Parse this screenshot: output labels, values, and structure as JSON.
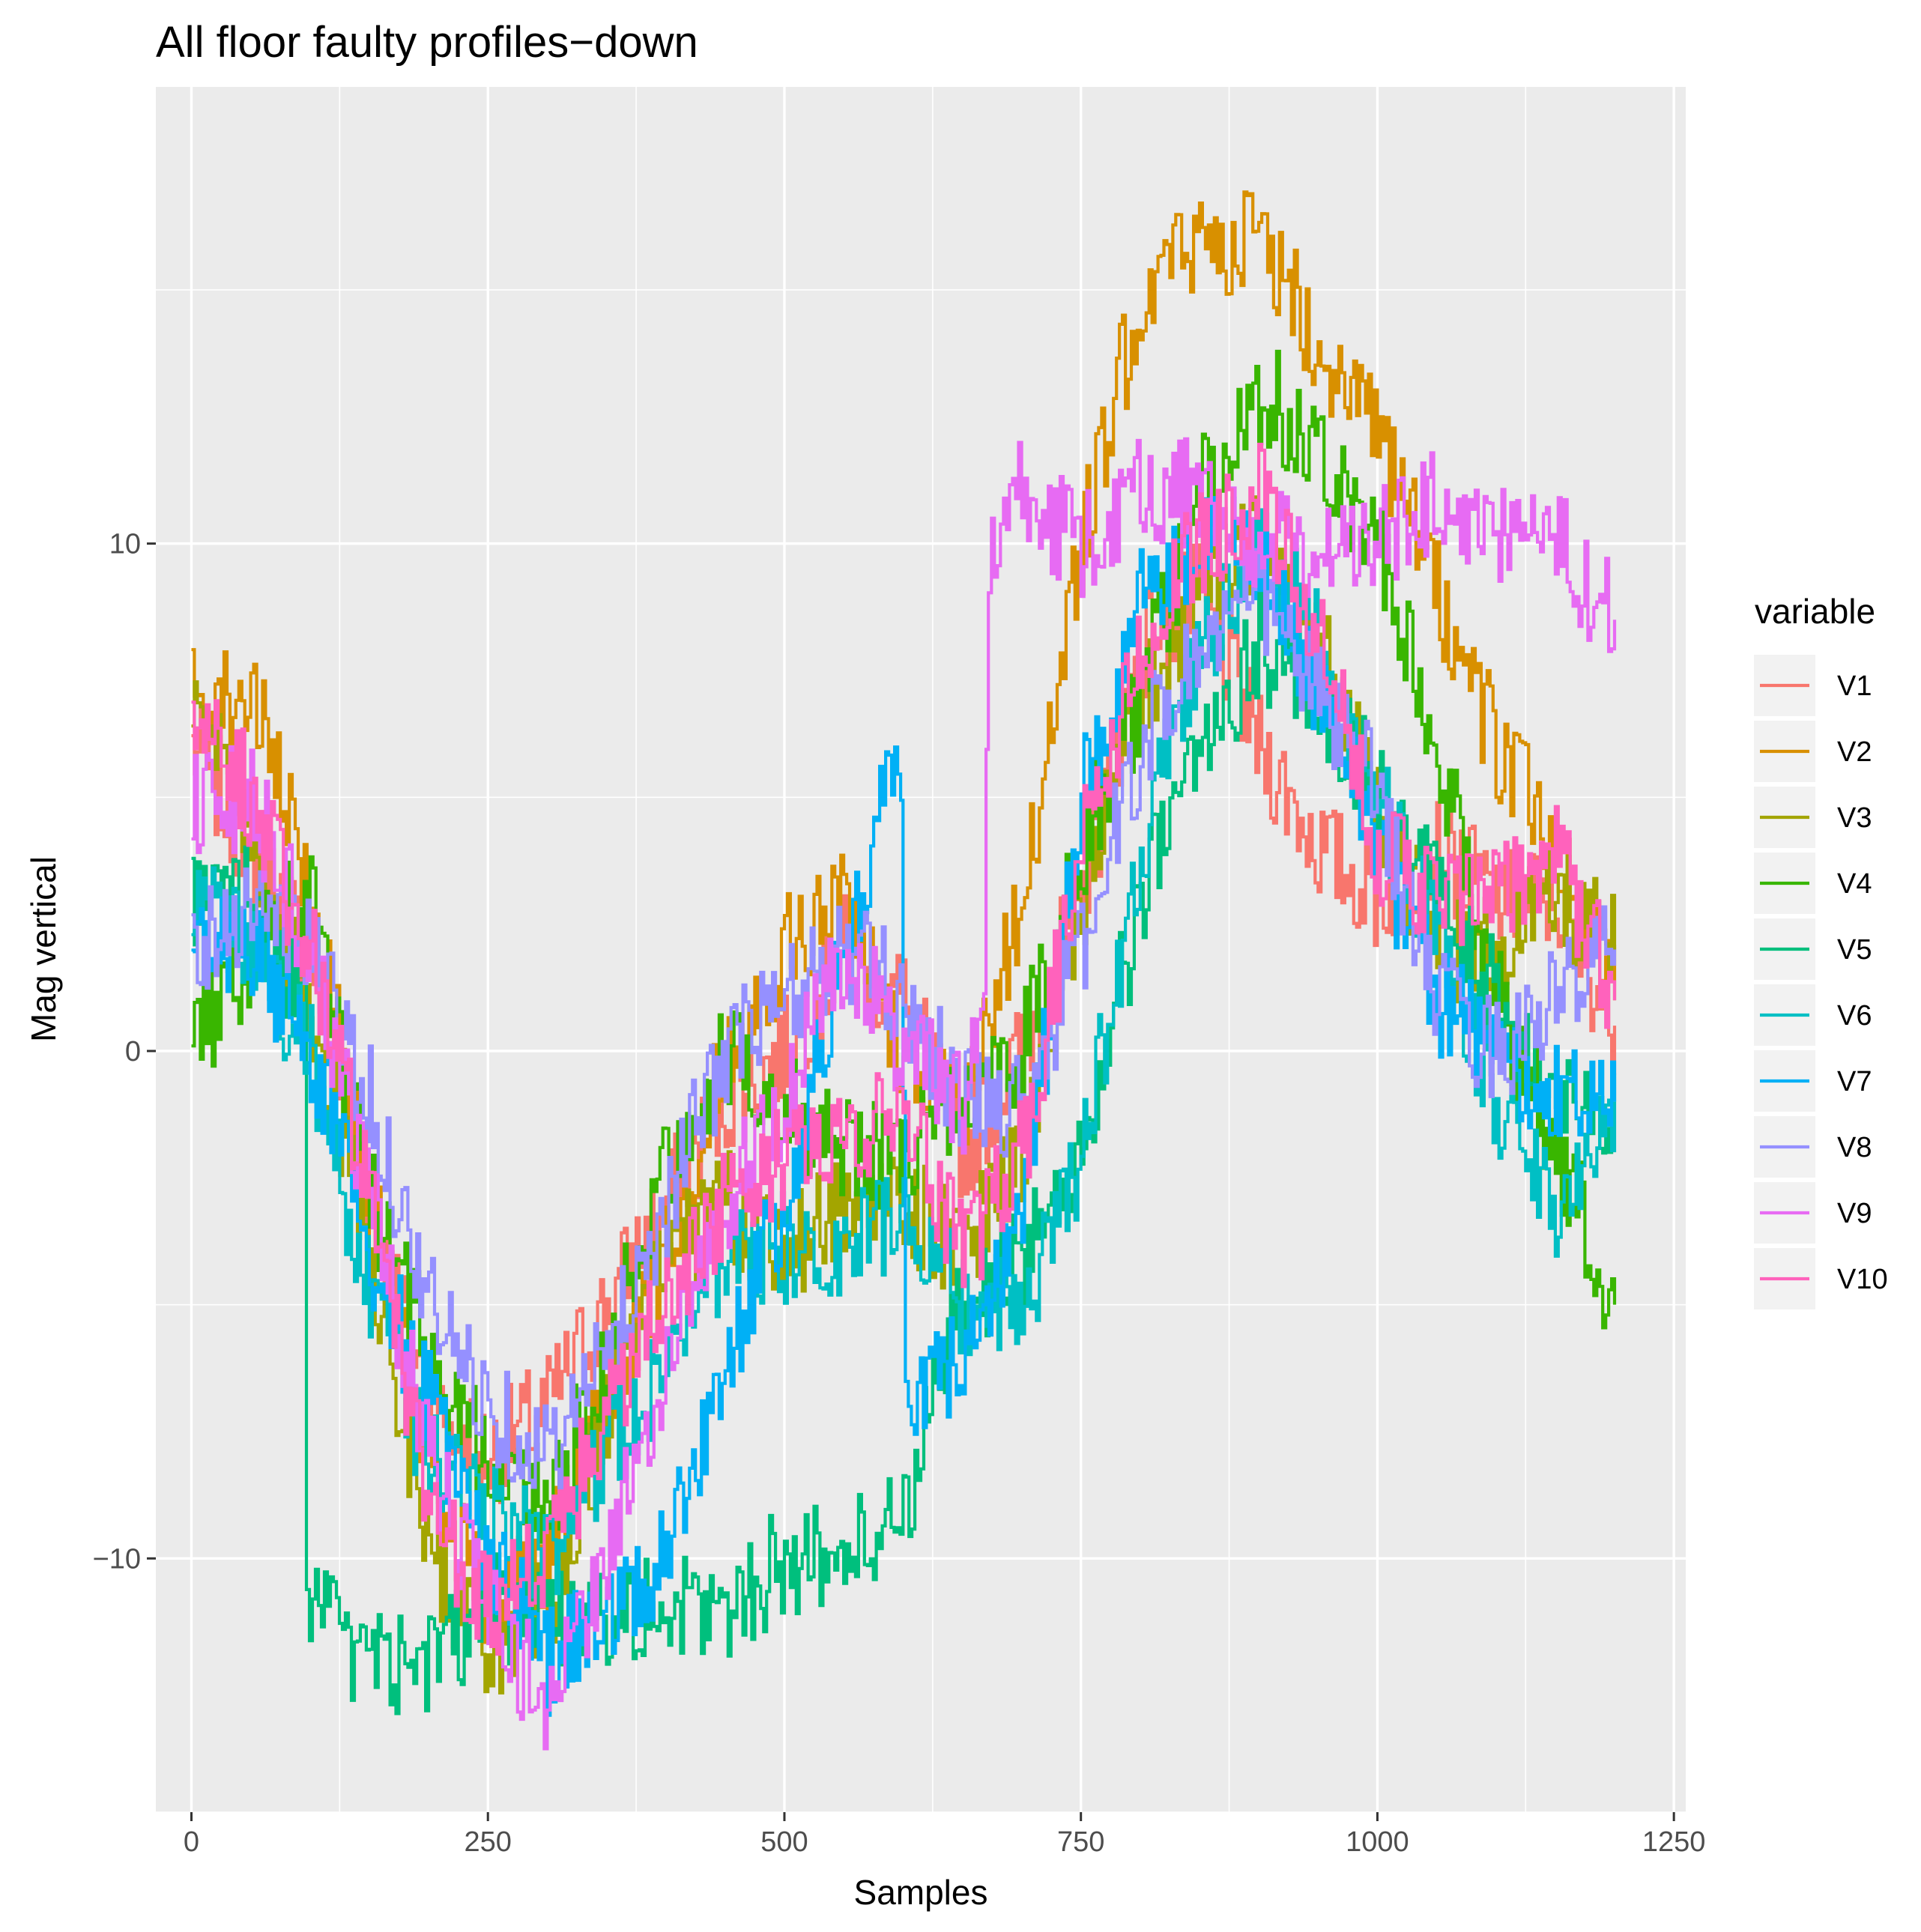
{
  "chart_data": {
    "type": "line",
    "title": "All floor faulty profiles−down",
    "xlabel": "Samples",
    "ylabel": "Mag vertical",
    "xlim": [
      -30,
      1260
    ],
    "ylim": [
      -15,
      19
    ],
    "x_ticks": [
      0,
      250,
      500,
      750,
      1000,
      1250
    ],
    "x_tick_labels": [
      "0",
      "250",
      "500",
      "750",
      "1000",
      "1250"
    ],
    "y_ticks": [
      -10,
      0,
      10
    ],
    "y_tick_labels": [
      "−10",
      "0",
      "10"
    ],
    "grid": true,
    "legend": {
      "title": "variable",
      "position": "right"
    },
    "series": [
      {
        "name": "V1",
        "color": "#F8766D",
        "x": [
          0,
          50,
          100,
          150,
          200,
          250,
          300,
          350,
          400,
          450,
          500,
          550,
          600,
          650,
          700,
          750,
          800,
          850,
          900,
          950,
          1000,
          1050,
          1100,
          1150,
          1200
        ],
        "y": [
          6,
          4,
          2,
          -3,
          -7,
          -8,
          -7,
          -5,
          -3,
          -1,
          0,
          2,
          1,
          -2,
          0,
          3,
          8,
          9,
          6,
          4,
          3,
          4,
          3,
          3,
          0.5
        ]
      },
      {
        "name": "V2",
        "color": "#D89000",
        "x": [
          0,
          50,
          100,
          150,
          200,
          250,
          300,
          350,
          400,
          450,
          500,
          550,
          600,
          650,
          700,
          750,
          800,
          850,
          900,
          950,
          1000,
          1050,
          1100,
          1150,
          1200
        ],
        "y": [
          7,
          7,
          3,
          -3,
          -8,
          -11,
          -10,
          -7,
          -4,
          0,
          2,
          3,
          0,
          -1,
          3,
          10,
          15,
          16,
          16,
          14,
          12,
          9,
          6,
          4,
          1
        ]
      },
      {
        "name": "V3",
        "color": "#A3A500",
        "x": [
          0,
          50,
          100,
          150,
          200,
          250,
          300,
          350,
          400,
          450,
          500,
          550,
          600,
          650,
          700,
          750,
          800,
          850,
          900,
          950,
          1000,
          1050,
          1100,
          1150,
          1200
        ],
        "y": [
          7,
          4,
          1,
          -4,
          -10,
          -12,
          -11,
          -7,
          -4,
          -3,
          -4,
          -3,
          -3,
          -4,
          -2,
          3,
          7,
          9,
          10,
          8,
          5,
          2,
          2,
          3,
          2
        ]
      },
      {
        "name": "V4",
        "color": "#39B600",
        "x": [
          0,
          50,
          100,
          150,
          200,
          250,
          300,
          350,
          400,
          450,
          500,
          550,
          600,
          650,
          700,
          750,
          800,
          850,
          900,
          950,
          1000,
          1050,
          1100,
          1150,
          1200
        ],
        "y": [
          0,
          2,
          3,
          -3,
          -6,
          -8,
          -9,
          -6,
          -2,
          0,
          -1,
          -2,
          -2,
          -1,
          0,
          4,
          7,
          11,
          13,
          12,
          10,
          6,
          1,
          -2,
          -5
        ]
      },
      {
        "name": "V5",
        "color": "#00BF7D",
        "x": [
          0,
          50,
          95,
          97,
          150,
          200,
          250,
          300,
          350,
          400,
          450,
          500,
          550,
          600,
          650,
          700,
          750,
          800,
          850,
          900,
          950,
          1000,
          1050,
          1100,
          1150,
          1200
        ],
        "y": [
          3,
          3,
          1,
          -11,
          -12,
          -12,
          -11,
          -11,
          -11,
          -11,
          -11,
          -10,
          -10,
          -9,
          -5,
          -4,
          -2,
          3,
          6,
          8,
          7,
          5,
          3,
          1,
          -1,
          -1
        ]
      },
      {
        "name": "V6",
        "color": "#00BFC4",
        "x": [
          0,
          50,
          100,
          150,
          200,
          250,
          300,
          350,
          400,
          450,
          500,
          550,
          600,
          650,
          700,
          750,
          800,
          850,
          900,
          950,
          1000,
          1050,
          1100,
          1150,
          1200
        ],
        "y": [
          3,
          2,
          0,
          -5,
          -8,
          -9,
          -10,
          -8,
          -6,
          -4,
          -4,
          -4,
          -3,
          -5,
          -5,
          -2,
          4,
          8,
          10,
          8,
          5,
          2,
          -1,
          -3,
          -1
        ]
      },
      {
        "name": "V7",
        "color": "#00B0F6",
        "x": [
          0,
          50,
          100,
          150,
          200,
          250,
          300,
          350,
          400,
          450,
          500,
          550,
          598,
          602,
          650,
          700,
          750,
          800,
          850,
          900,
          950,
          1000,
          1050,
          1100,
          1150,
          1200
        ],
        "y": [
          2,
          2,
          0,
          -4,
          -7,
          -10,
          -12,
          -11,
          -10,
          -6,
          -3,
          2,
          6,
          -7,
          -6,
          -3,
          5,
          9,
          10,
          10,
          7,
          4,
          1,
          0,
          -1,
          -1
        ]
      },
      {
        "name": "V8",
        "color": "#9590FF",
        "x": [
          0,
          50,
          100,
          150,
          200,
          250,
          300,
          350,
          400,
          450,
          500,
          550,
          600,
          650,
          700,
          750,
          800,
          850,
          900,
          950,
          1000,
          1050,
          1100,
          1150,
          1200
        ],
        "y": [
          2,
          3,
          2,
          -1,
          -5,
          -7,
          -8,
          -6,
          -3,
          0,
          1,
          2,
          1,
          -1,
          -1,
          2,
          6,
          8,
          9,
          7,
          5,
          1,
          0,
          1,
          2
        ]
      },
      {
        "name": "V9",
        "color": "#E76BF3",
        "x": [
          0,
          50,
          100,
          150,
          200,
          250,
          300,
          350,
          400,
          450,
          500,
          550,
          600,
          650,
          668,
          672,
          700,
          750,
          800,
          850,
          900,
          950,
          1000,
          1050,
          1100,
          1150,
          1200
        ],
        "y": [
          5,
          5,
          2,
          -3,
          -8,
          -11,
          -13,
          -10,
          -6,
          -3,
          -1,
          2,
          0,
          -1,
          1,
          10,
          11,
          10,
          11,
          11,
          10,
          10,
          10,
          11,
          10,
          10,
          8.5
        ]
      },
      {
        "name": "V10",
        "color": "#FF62BC",
        "x": [
          0,
          50,
          100,
          150,
          200,
          250,
          300,
          350,
          400,
          450,
          500,
          550,
          600,
          650,
          700,
          750,
          800,
          850,
          900,
          950,
          1000,
          1050,
          1100,
          1150,
          1200
        ],
        "y": [
          7,
          5,
          2,
          -3,
          -9,
          -11,
          -10,
          -7,
          -5,
          -3,
          -2,
          -2,
          -1,
          -4,
          -2,
          4,
          8,
          10,
          11,
          8,
          4,
          3,
          3,
          4,
          1
        ]
      }
    ]
  }
}
